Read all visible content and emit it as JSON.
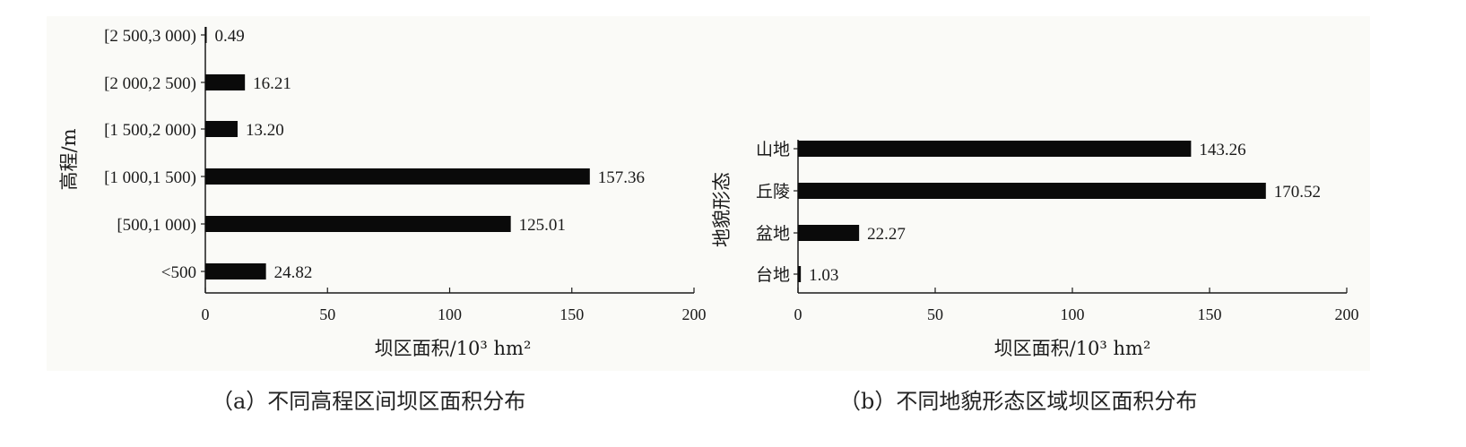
{
  "chart_data": [
    {
      "type": "bar",
      "orientation": "horizontal",
      "categories": [
        "<500",
        "[500,1 000)",
        "[1 000,1 500)",
        "[1 500,2 000)",
        "[2 000,2 500)",
        "[2 500,3 000)"
      ],
      "values": [
        24.82,
        125.01,
        157.36,
        13.2,
        16.21,
        0.49
      ],
      "value_labels": [
        "24.82",
        "125.01",
        "157.36",
        "13.20",
        "16.21",
        "0.49"
      ],
      "xlabel": "坝区面积/10³ hm²",
      "ylabel": "高程/m",
      "xlim": [
        0,
        200
      ],
      "xticks": [
        0,
        50,
        100,
        150,
        200
      ],
      "grid": false,
      "bar_color": "#0a0a0a",
      "caption": "（a）不同高程区间坝区面积分布"
    },
    {
      "type": "bar",
      "orientation": "horizontal",
      "categories": [
        "台地",
        "盆地",
        "丘陵",
        "山地"
      ],
      "values": [
        1.03,
        22.27,
        170.52,
        143.26
      ],
      "value_labels": [
        "1.03",
        "22.27",
        "170.52",
        "143.26"
      ],
      "xlabel": "坝区面积/10³ hm²",
      "ylabel": "地貌形态",
      "xlim": [
        0,
        200
      ],
      "xticks": [
        0,
        50,
        100,
        150,
        200
      ],
      "grid": false,
      "bar_color": "#0a0a0a",
      "caption": "（b）不同地貌形态区域坝区面积分布"
    }
  ]
}
